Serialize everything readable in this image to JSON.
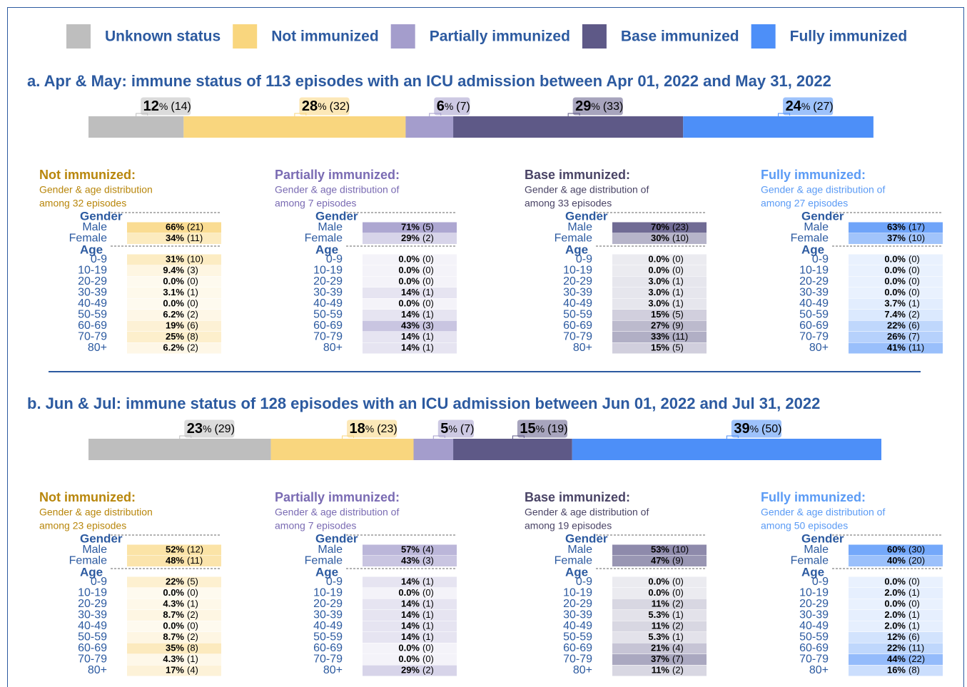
{
  "legend": [
    {
      "name": "Unknown status",
      "color": "#bebebe"
    },
    {
      "name": "Not immunized",
      "color": "#f9d67e"
    },
    {
      "name": "Partially immunized",
      "color": "#a49dcc"
    },
    {
      "name": "Base immunized",
      "color": "#5e5987"
    },
    {
      "name": "Fully immunized",
      "color": "#4d8ff8"
    }
  ],
  "percent_sign": "%",
  "gender_heading": "Gender",
  "age_heading": "Age",
  "gender_categories": [
    "Male",
    "Female"
  ],
  "age_categories": [
    "0-9",
    "10-19",
    "20-29",
    "30-39",
    "40-49",
    "50-59",
    "60-69",
    "70-79",
    "80+"
  ],
  "panels": [
    {
      "title": "a. Apr & May: immune status of 113 episodes with an ICU admission between Apr 01, 2022 and May 31, 2022",
      "bar": {
        "values": [
          12,
          28,
          6,
          29,
          24
        ],
        "count_labels": [
          "(14)",
          "(32)",
          "(7)",
          "(33)",
          "(27)"
        ]
      },
      "groups": [
        {
          "title": "Not immunized:",
          "title_color": "#b8860b",
          "color": "#f9d67e",
          "subtitle": [
            "Gender & age distribution",
            "among 32 episodes"
          ],
          "gender": {
            "values": [
              66,
              34
            ],
            "value_labels": [
              "66%",
              "34%"
            ],
            "count_labels": [
              "(21)",
              "(11)"
            ]
          },
          "age": {
            "values": [
              31,
              9.4,
              0,
              3.1,
              0,
              6.2,
              19,
              25,
              6.2
            ],
            "value_labels": [
              "31%",
              "9.4%",
              "0.0%",
              "3.1%",
              "0.0%",
              "6.2%",
              "19%",
              "25%",
              "6.2%"
            ],
            "count_labels": [
              "(10)",
              "(3)",
              "(0)",
              "(1)",
              "(0)",
              "(2)",
              "(6)",
              "(8)",
              "(2)"
            ]
          }
        },
        {
          "title": "Partially immunized:",
          "title_color": "#7a6bb3",
          "color": "#a49dcc",
          "subtitle": [
            "Gender & age distribution of",
            "among 7 episodes"
          ],
          "gender": {
            "values": [
              71,
              29
            ],
            "value_labels": [
              "71%",
              "29%"
            ],
            "count_labels": [
              "(5)",
              "(2)"
            ]
          },
          "age": {
            "values": [
              0,
              0,
              0,
              14,
              0,
              14,
              43,
              14,
              14
            ],
            "value_labels": [
              "0.0%",
              "0.0%",
              "0.0%",
              "14%",
              "0.0%",
              "14%",
              "43%",
              "14%",
              "14%"
            ],
            "count_labels": [
              "(0)",
              "(0)",
              "(0)",
              "(1)",
              "(0)",
              "(1)",
              "(3)",
              "(1)",
              "(1)"
            ]
          }
        },
        {
          "title": "Base immunized:",
          "title_color": "#4a4466",
          "color": "#5e5987",
          "subtitle": [
            "Gender & age distribution of",
            "among 33 episodes"
          ],
          "gender": {
            "values": [
              70,
              30
            ],
            "value_labels": [
              "70%",
              "30%"
            ],
            "count_labels": [
              "(23)",
              "(10)"
            ]
          },
          "age": {
            "values": [
              0,
              0,
              3,
              3,
              3,
              15,
              27,
              33,
              15
            ],
            "value_labels": [
              "0.0%",
              "0.0%",
              "3.0%",
              "3.0%",
              "3.0%",
              "15%",
              "27%",
              "33%",
              "15%"
            ],
            "count_labels": [
              "(0)",
              "(0)",
              "(1)",
              "(1)",
              "(1)",
              "(5)",
              "(9)",
              "(11)",
              "(5)"
            ]
          }
        },
        {
          "title": "Fully immunized:",
          "title_color": "#5b9bf5",
          "color": "#4d8ff8",
          "subtitle": [
            "Gender & age distribution of",
            "among 27 episodes"
          ],
          "gender": {
            "values": [
              63,
              37
            ],
            "value_labels": [
              "63%",
              "37%"
            ],
            "count_labels": [
              "(17)",
              "(10)"
            ]
          },
          "age": {
            "values": [
              0,
              0,
              0,
              0,
              3.7,
              7.4,
              22,
              26,
              41
            ],
            "value_labels": [
              "0.0%",
              "0.0%",
              "0.0%",
              "0.0%",
              "3.7%",
              "7.4%",
              "22%",
              "26%",
              "41%"
            ],
            "count_labels": [
              "(0)",
              "(0)",
              "(0)",
              "(0)",
              "(1)",
              "(2)",
              "(6)",
              "(7)",
              "(11)"
            ]
          }
        }
      ]
    },
    {
      "title": "b. Jun & Jul: immune status of 128 episodes with an ICU admission between Jun 01, 2022 and Jul 31, 2022",
      "bar": {
        "values": [
          23,
          18,
          5,
          15,
          39
        ],
        "count_labels": [
          "(29)",
          "(23)",
          "(7)",
          "(19)",
          "(50)"
        ]
      },
      "groups": [
        {
          "title": "Not immunized:",
          "title_color": "#b8860b",
          "color": "#f9d67e",
          "subtitle": [
            "Gender & age distribution",
            "among 23 episodes"
          ],
          "gender": {
            "values": [
              52,
              48
            ],
            "value_labels": [
              "52%",
              "48%"
            ],
            "count_labels": [
              "(12)",
              "(11)"
            ]
          },
          "age": {
            "values": [
              22,
              0,
              4.3,
              8.7,
              0,
              8.7,
              35,
              4.3,
              17
            ],
            "value_labels": [
              "22%",
              "0.0%",
              "4.3%",
              "8.7%",
              "0.0%",
              "8.7%",
              "35%",
              "4.3%",
              "17%"
            ],
            "count_labels": [
              "(5)",
              "(0)",
              "(1)",
              "(2)",
              "(0)",
              "(2)",
              "(8)",
              "(1)",
              "(4)"
            ]
          }
        },
        {
          "title": "Partially immunized:",
          "title_color": "#7a6bb3",
          "color": "#a49dcc",
          "subtitle": [
            "Gender & age distribution of",
            "among 7 episodes"
          ],
          "gender": {
            "values": [
              57,
              43
            ],
            "value_labels": [
              "57%",
              "43%"
            ],
            "count_labels": [
              "(4)",
              "(3)"
            ]
          },
          "age": {
            "values": [
              14,
              0,
              14,
              14,
              14,
              14,
              0,
              0,
              29
            ],
            "value_labels": [
              "14%",
              "0.0%",
              "14%",
              "14%",
              "14%",
              "14%",
              "0.0%",
              "0.0%",
              "29%"
            ],
            "count_labels": [
              "(1)",
              "(0)",
              "(1)",
              "(1)",
              "(1)",
              "(1)",
              "(0)",
              "(0)",
              "(2)"
            ]
          }
        },
        {
          "title": "Base immunized:",
          "title_color": "#4a4466",
          "color": "#5e5987",
          "subtitle": [
            "Gender & age distribution of",
            "among 19 episodes"
          ],
          "gender": {
            "values": [
              53,
              47
            ],
            "value_labels": [
              "53%",
              "47%"
            ],
            "count_labels": [
              "(10)",
              "(9)"
            ]
          },
          "age": {
            "values": [
              0,
              0,
              11,
              5.3,
              11,
              5.3,
              21,
              37,
              11
            ],
            "value_labels": [
              "0.0%",
              "0.0%",
              "11%",
              "5.3%",
              "11%",
              "5.3%",
              "21%",
              "37%",
              "11%"
            ],
            "count_labels": [
              "(0)",
              "(0)",
              "(2)",
              "(1)",
              "(2)",
              "(1)",
              "(4)",
              "(7)",
              "(2)"
            ]
          }
        },
        {
          "title": "Fully immunized:",
          "title_color": "#5b9bf5",
          "color": "#4d8ff8",
          "subtitle": [
            "Gender & age distribution of",
            "among 50 episodes"
          ],
          "gender": {
            "values": [
              60,
              40
            ],
            "value_labels": [
              "60%",
              "40%"
            ],
            "count_labels": [
              "(30)",
              "(20)"
            ]
          },
          "age": {
            "values": [
              0,
              2,
              0,
              2,
              2,
              12,
              22,
              44,
              16
            ],
            "value_labels": [
              "0.0%",
              "2.0%",
              "0.0%",
              "2.0%",
              "2.0%",
              "12%",
              "22%",
              "44%",
              "16%"
            ],
            "count_labels": [
              "(0)",
              "(1)",
              "(0)",
              "(1)",
              "(1)",
              "(6)",
              "(11)",
              "(22)",
              "(8)"
            ]
          }
        }
      ]
    }
  ]
}
